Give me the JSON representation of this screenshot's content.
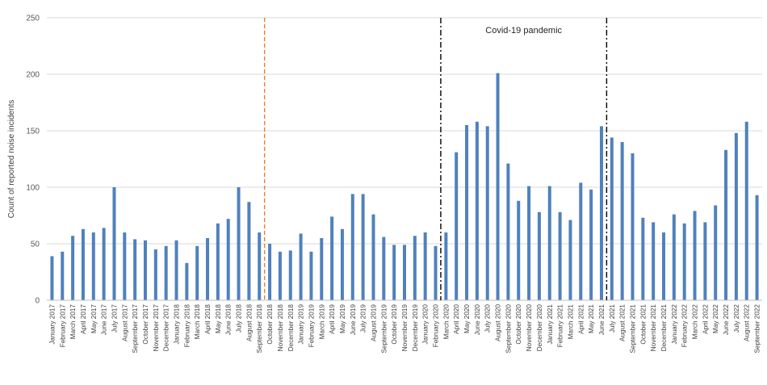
{
  "chart_data": {
    "type": "bar",
    "title": "",
    "xlabel": "",
    "ylabel": "Count of reported noise incidents",
    "ylim": [
      0,
      250
    ],
    "yticks": [
      0,
      50,
      100,
      150,
      200,
      250
    ],
    "grid": "horizontal",
    "bar_color": "#4f81bd",
    "categories": [
      "January 2017",
      "February 2017",
      "March 2017",
      "April 2017",
      "May 2017",
      "June 2017",
      "July 2017",
      "August 2017",
      "September 2017",
      "October 2017",
      "November 2017",
      "December 2017",
      "January 2018",
      "February 2018",
      "March 2018",
      "April 2018",
      "May 2018",
      "June 2018",
      "July 2018",
      "August 2018",
      "September 2018",
      "October 2018",
      "November 2018",
      "December 2018",
      "January 2019",
      "February 2019",
      "March 2019",
      "April 2019",
      "May 2019",
      "June 2019",
      "July 2019",
      "August 2019",
      "September 2019",
      "October 2019",
      "November 2019",
      "December 2019",
      "January 2020",
      "February 2020",
      "March 2020",
      "April 2020",
      "May 2020",
      "June 2020",
      "July 2020",
      "August 2020",
      "September 2020",
      "October 2020",
      "November 2020",
      "December 2020",
      "January 2021",
      "February 2021",
      "March 2021",
      "April 2021",
      "May 2021",
      "June 2021",
      "July 2021",
      "August 2021",
      "September 2021",
      "October 2021",
      "November 2021",
      "December 2021",
      "January 2022",
      "February 2022",
      "March 2022",
      "April 2022",
      "May 2022",
      "June 2022",
      "July 2022",
      "August 2022",
      "September 2022"
    ],
    "values": [
      39,
      43,
      57,
      63,
      60,
      64,
      100,
      60,
      54,
      53,
      45,
      48,
      53,
      33,
      48,
      55,
      68,
      72,
      100,
      87,
      60,
      50,
      43,
      44,
      59,
      43,
      55,
      74,
      63,
      94,
      94,
      76,
      56,
      49,
      49,
      57,
      60,
      48,
      60,
      131,
      155,
      158,
      154,
      201,
      121,
      88,
      101,
      78,
      101,
      78,
      71,
      104,
      98,
      154,
      144,
      140,
      130,
      73,
      69,
      60,
      76,
      68,
      79,
      69,
      84,
      133,
      148,
      158,
      93
    ],
    "markers": [
      {
        "position_between": [
          "September 2018",
          "October 2018"
        ],
        "style": "dashed",
        "color": "#ed7d31"
      },
      {
        "position_between": [
          "February 2020",
          "March 2020"
        ],
        "style": "dash-dot",
        "color": "#000000"
      },
      {
        "position_between": [
          "June 2021",
          "July 2021"
        ],
        "style": "dash-dot",
        "color": "#000000"
      }
    ],
    "annotations": [
      {
        "text": "Covid-19 pandemic",
        "between_markers": [
          1,
          2
        ]
      }
    ]
  }
}
